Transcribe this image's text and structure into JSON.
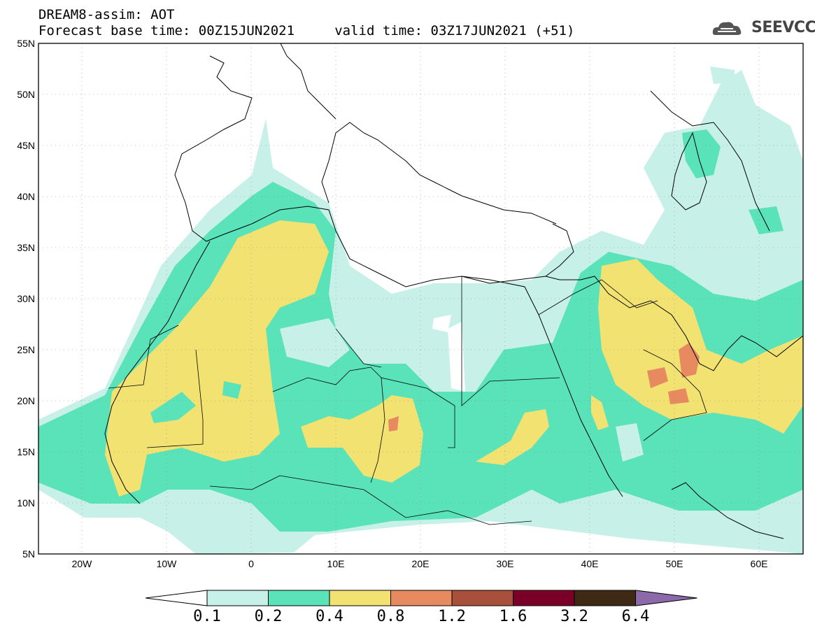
{
  "header": {
    "title_line1": "DREAM8-assim: AOT",
    "title_line2": "Forecast base time: 00Z15JUN2021     valid time: 03Z17JUN2021 (+51)",
    "logo_text": "SEEVCCC"
  },
  "map": {
    "lat_labels": [
      "55N",
      "50N",
      "45N",
      "40N",
      "35N",
      "30N",
      "25N",
      "20N",
      "15N",
      "10N",
      "5N"
    ],
    "lon_labels": [
      "20W",
      "10W",
      "0",
      "10E",
      "20E",
      "30E",
      "40E",
      "50E",
      "60E"
    ]
  },
  "colorbar": {
    "colors": [
      "#ffffff",
      "#c6f0e8",
      "#5ae2b8",
      "#f2e272",
      "#e88a60",
      "#a8503c",
      "#7a0028",
      "#3e2a14",
      "#8c6aaa"
    ],
    "labels": [
      "0.1",
      "0.2",
      "0.4",
      "0.8",
      "1.2",
      "1.6",
      "3.2",
      "6.4"
    ]
  }
}
